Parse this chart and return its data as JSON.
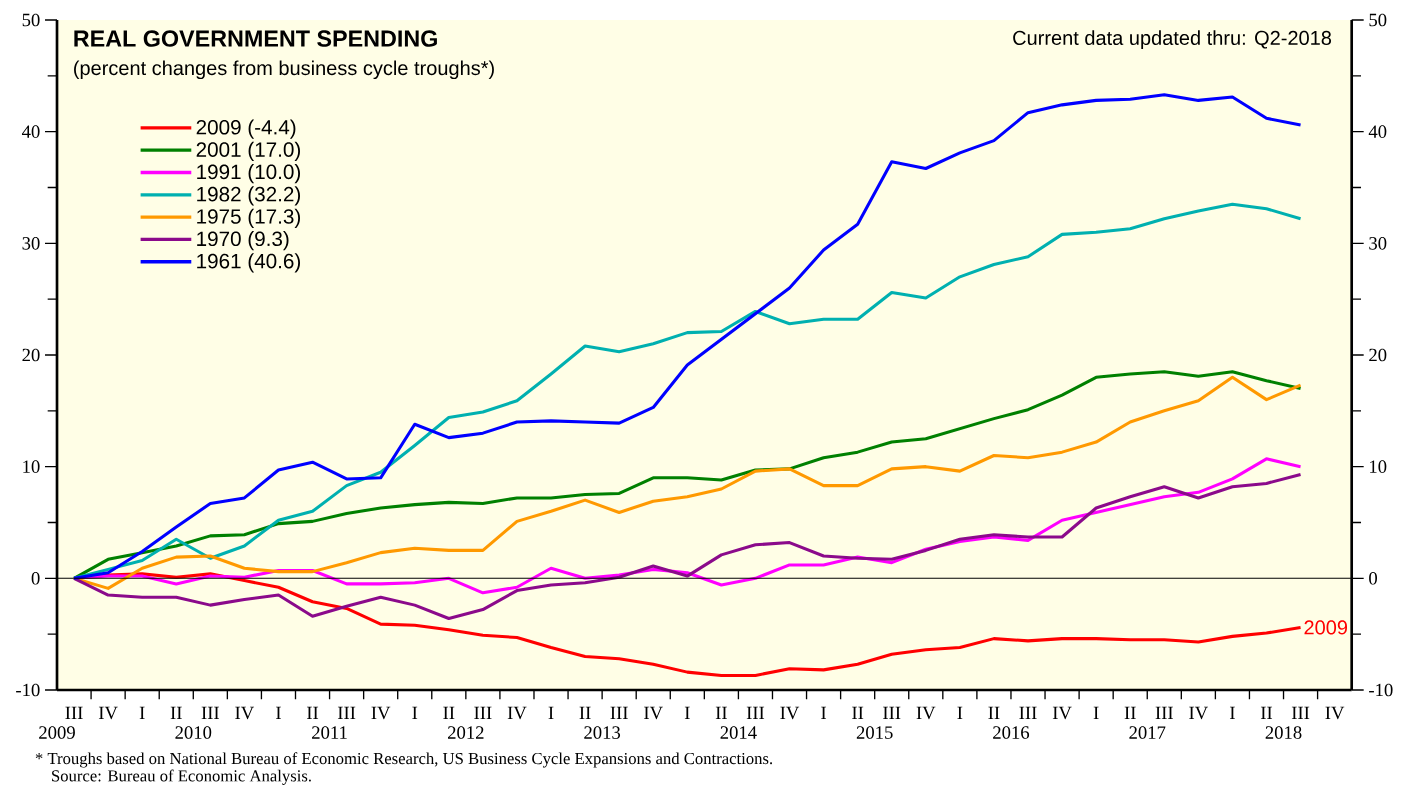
{
  "chart_data": {
    "type": "line",
    "title": "REAL GOVERNMENT SPENDING",
    "subtitle": "(percent changes from business cycle troughs*)",
    "categories": [
      "III",
      "IV",
      "I",
      "II",
      "III",
      "IV",
      "I",
      "II",
      "III",
      "IV",
      "I",
      "II",
      "III",
      "IV",
      "I",
      "II",
      "III",
      "IV",
      "I",
      "II",
      "III",
      "IV",
      "I",
      "II",
      "III",
      "IV",
      "I",
      "II",
      "III",
      "IV",
      "I",
      "II",
      "III",
      "IV",
      "I",
      "II",
      "III",
      "IV"
    ],
    "series": [
      {
        "name": "2009 (-4.4)",
        "color": "#ff0000",
        "values": [
          0,
          0.3,
          0.4,
          0.1,
          0.4,
          -0.2,
          -0.8,
          -2.1,
          -2.7,
          -4.1,
          -4.2,
          -4.6,
          -5.1,
          -5.3,
          -6.2,
          -7.0,
          -7.2,
          -7.7,
          -8.4,
          -8.7,
          -8.7,
          -8.1,
          -8.2,
          -7.7,
          -6.8,
          -6.4,
          -6.2,
          -5.4,
          -5.6,
          -5.4,
          -5.4,
          -5.5,
          -5.5,
          -5.7,
          -5.2,
          -4.9,
          -4.4,
          null
        ]
      },
      {
        "name": "2001 (17.0)",
        "color": "#008000",
        "values": [
          0,
          1.7,
          2.3,
          2.9,
          3.8,
          3.9,
          4.9,
          5.1,
          5.8,
          6.3,
          6.6,
          6.8,
          6.7,
          7.2,
          7.2,
          7.5,
          7.6,
          9.0,
          9.0,
          8.8,
          9.7,
          9.8,
          10.8,
          11.3,
          12.2,
          12.5,
          13.4,
          14.3,
          15.1,
          16.4,
          18.0,
          18.3,
          18.5,
          18.1,
          18.5,
          17.7,
          17.0,
          null
        ]
      },
      {
        "name": "1991 (10.0)",
        "color": "#ff00ff",
        "values": [
          0,
          0.2,
          0.2,
          -0.5,
          0.2,
          0.1,
          0.7,
          0.7,
          -0.5,
          -0.5,
          -0.4,
          0,
          -1.3,
          -0.8,
          0.9,
          0,
          0.3,
          0.8,
          0.5,
          -0.6,
          0,
          1.2,
          1.2,
          1.9,
          1.4,
          2.6,
          3.3,
          3.7,
          3.4,
          5.2,
          5.9,
          6.6,
          7.3,
          7.7,
          8.9,
          10.7,
          10.0,
          null
        ]
      },
      {
        "name": "1982 (32.2)",
        "color": "#00b0b0",
        "values": [
          0,
          0.8,
          1.6,
          3.5,
          1.8,
          2.9,
          5.2,
          6.0,
          8.3,
          9.5,
          11.9,
          14.4,
          14.9,
          15.9,
          18.3,
          20.8,
          20.3,
          21.0,
          22.0,
          22.1,
          23.9,
          22.8,
          23.2,
          23.2,
          25.6,
          25.1,
          27.0,
          28.1,
          28.8,
          30.8,
          31.0,
          31.3,
          32.2,
          32.9,
          33.5,
          33.1,
          32.2,
          null
        ]
      },
      {
        "name": "1975 (17.3)",
        "color": "#ff9900",
        "values": [
          0,
          -0.9,
          0.9,
          1.9,
          2.0,
          0.9,
          0.6,
          0.6,
          1.4,
          2.3,
          2.7,
          2.5,
          2.5,
          5.1,
          6.0,
          7.0,
          5.9,
          6.9,
          7.3,
          8.0,
          9.6,
          9.8,
          8.3,
          8.3,
          9.8,
          10.0,
          9.6,
          11.0,
          10.8,
          11.3,
          12.2,
          14.0,
          15.0,
          15.9,
          18.0,
          16.0,
          17.3,
          null
        ]
      },
      {
        "name": "1970 (9.3)",
        "color": "#8b0a8b",
        "values": [
          0,
          -1.5,
          -1.7,
          -1.7,
          -2.4,
          -1.9,
          -1.5,
          -3.4,
          -2.5,
          -1.7,
          -2.4,
          -3.6,
          -2.8,
          -1.1,
          -0.6,
          -0.4,
          0.1,
          1.1,
          0.2,
          2.1,
          3.0,
          3.2,
          2.0,
          1.8,
          1.7,
          2.5,
          3.5,
          3.9,
          3.7,
          3.7,
          6.3,
          7.3,
          8.2,
          7.2,
          8.2,
          8.5,
          9.3,
          null
        ]
      },
      {
        "name": "1961 (40.6)",
        "color": "#0000ff",
        "values": [
          0,
          0.5,
          2.4,
          4.6,
          6.7,
          7.2,
          9.7,
          10.4,
          8.9,
          9.0,
          13.8,
          12.6,
          13.0,
          14.0,
          14.1,
          14.0,
          13.9,
          15.3,
          19.1,
          21.4,
          23.7,
          26.0,
          29.4,
          31.7,
          37.3,
          36.7,
          38.1,
          39.2,
          41.7,
          42.4,
          42.8,
          42.9,
          43.3,
          42.8,
          43.1,
          41.2,
          40.6,
          null
        ]
      }
    ],
    "ylim": [
      -10,
      50
    ],
    "yticks": [
      -10,
      0,
      10,
      20,
      30,
      40,
      50
    ],
    "y2lim": [
      -10,
      50
    ],
    "y2ticks": [
      -10,
      0,
      10,
      20,
      30,
      40,
      50
    ],
    "ref_lines": [
      {
        "axis": "y",
        "value": 0,
        "color": "#000000"
      }
    ],
    "legend": "top left",
    "annotations": [
      "Current data updated thru: Q2-2018",
      "2009",
      "2009",
      "2010",
      "2011",
      "2012",
      "2013",
      "2014",
      "2015",
      "2016",
      "2017",
      "2018",
      "*  Troughs based on National Bureau of Economic Research, US Business Cycle Expansions and Contractions.",
      "Source: Bureau of Economic Analysis."
    ]
  }
}
